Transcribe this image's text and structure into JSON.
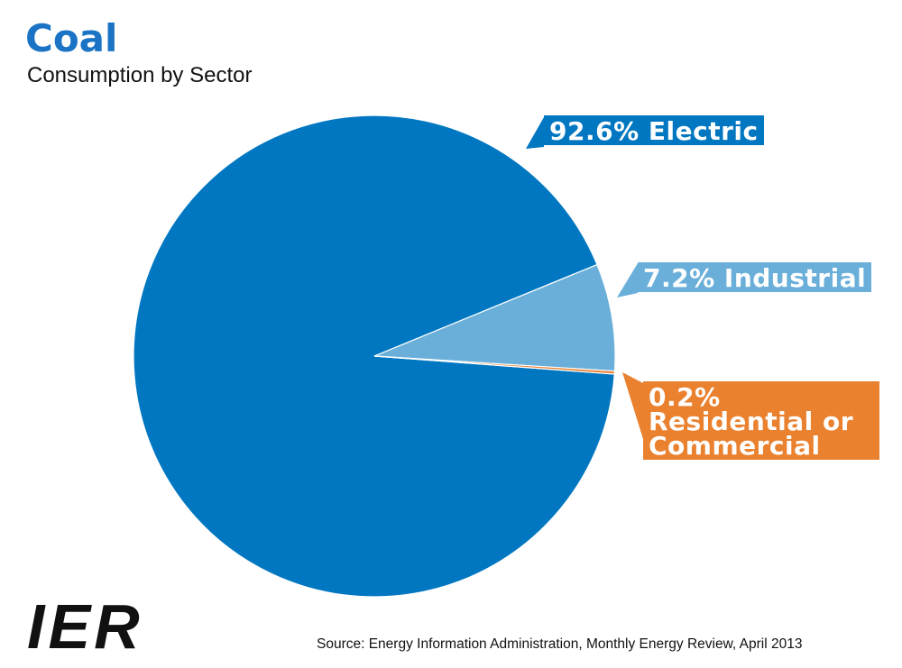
{
  "chart_data": {
    "type": "pie",
    "title": "Coal",
    "subtitle": "Consumption by Sector",
    "categories": [
      "Electric",
      "Industrial",
      "Residential or Commercial"
    ],
    "values": [
      92.6,
      7.2,
      0.2
    ],
    "value_labels": [
      "92.6%",
      "7.2%",
      "0.2%"
    ],
    "colors": [
      "#0077c0",
      "#6aafd9",
      "#e9812f"
    ],
    "source": "Source: Energy Information Administration, Monthly Energy Review, April 2013",
    "logo": "IER"
  }
}
